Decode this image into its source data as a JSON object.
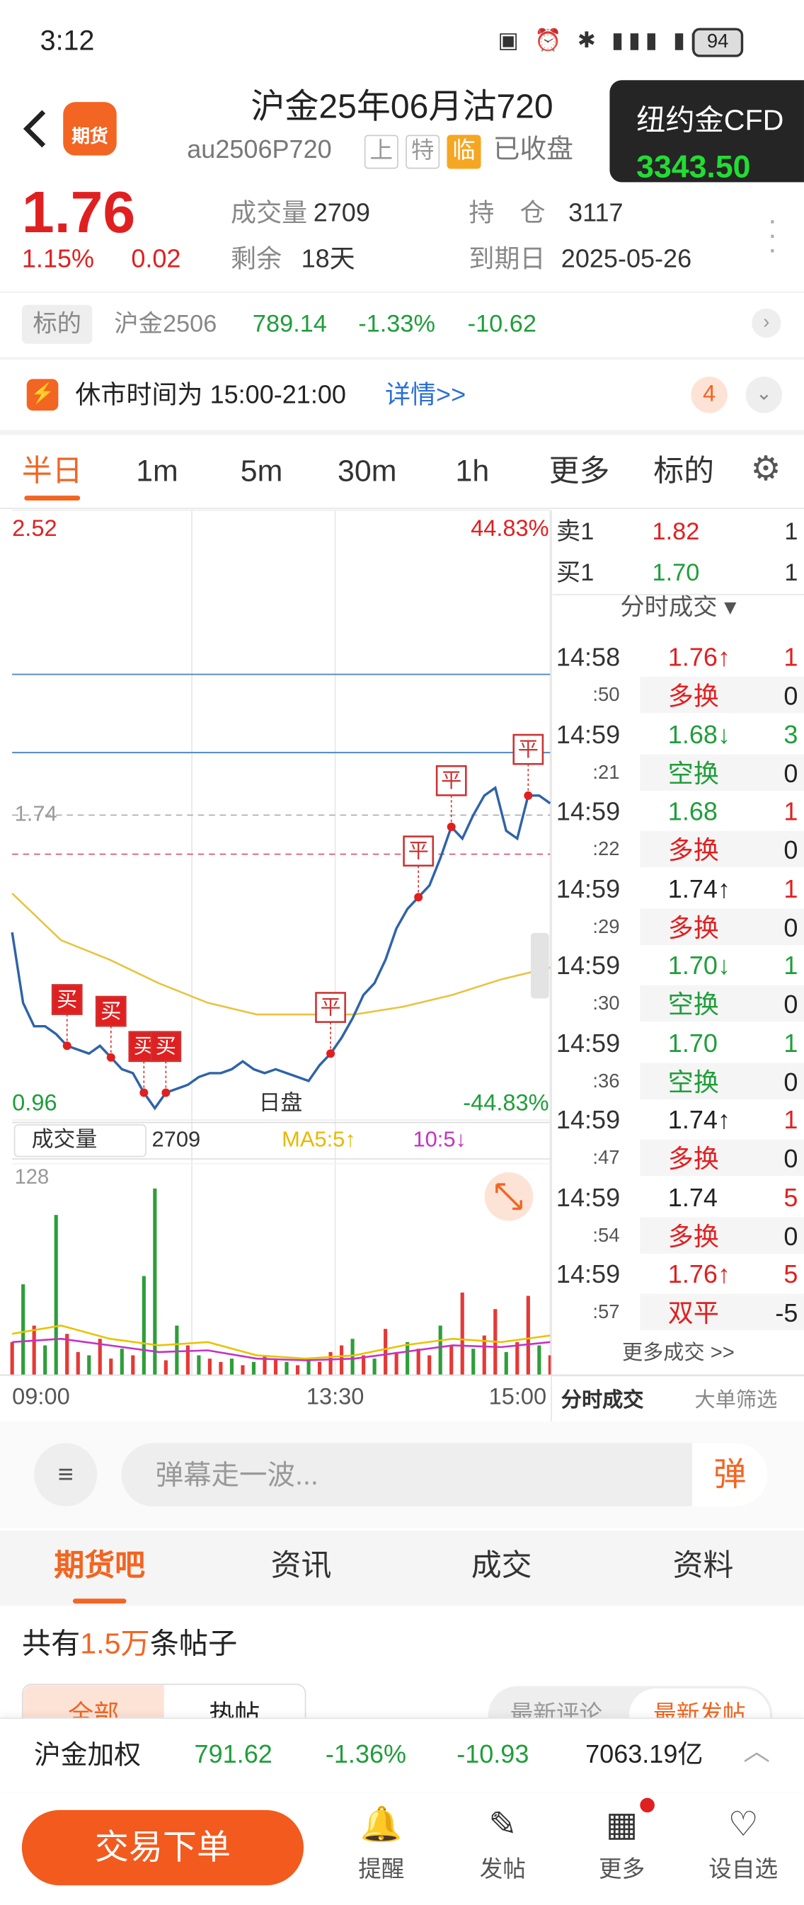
{
  "status_bar": {
    "time": "3:12",
    "battery": "94"
  },
  "header": {
    "title": "沪金25年06月沽720",
    "code": "au2506P720",
    "badges": [
      "上",
      "特",
      "临"
    ],
    "status": "已收盘",
    "logo": "期货"
  },
  "overlay": {
    "name": "纽约金CFD",
    "price": "3343.50"
  },
  "quote": {
    "price": "1.76",
    "change_pct": "1.15%",
    "change": "0.02",
    "fields": [
      {
        "label": "成交量",
        "value": "2709"
      },
      {
        "label": "剩余",
        "value": "18天"
      },
      {
        "label": "持　仓",
        "value": "3117"
      },
      {
        "label": "到期日",
        "value": "2025-05-26"
      }
    ]
  },
  "underlying": {
    "tag": "标的",
    "name": "沪金2506",
    "price": "789.14",
    "change_pct": "-1.33%",
    "change": "-10.62"
  },
  "notice": {
    "text": "休市时间为 15:00-21:00",
    "link": "详情>>",
    "count": "4"
  },
  "tabs": [
    "半日",
    "1m",
    "5m",
    "30m",
    "1h",
    "更多",
    "标的"
  ],
  "chart": {
    "yticks": [
      2.52,
      0.96
    ],
    "pct_top": "44.83%",
    "pct_bottom": "-44.83%",
    "ref": 1.74,
    "dashed_level": 1.64,
    "levels": [
      2.1,
      1.9
    ],
    "session": "日盘",
    "price": [
      1.44,
      1.26,
      1.2,
      1.2,
      1.18,
      1.15,
      1.14,
      1.13,
      1.15,
      1.12,
      1.09,
      1.08,
      1.03,
      0.99,
      1.03,
      1.04,
      1.05,
      1.07,
      1.08,
      1.08,
      1.09,
      1.11,
      1.09,
      1.08,
      1.09,
      1.08,
      1.07,
      1.06,
      1.1,
      1.13,
      1.17,
      1.22,
      1.28,
      1.31,
      1.37,
      1.45,
      1.5,
      1.53,
      1.56,
      1.63,
      1.71,
      1.68,
      1.74,
      1.79,
      1.81,
      1.7,
      1.68,
      1.79,
      1.79,
      1.77
    ],
    "avg": [
      1.54,
      1.42,
      1.37,
      1.31,
      1.26,
      1.23,
      1.23,
      1.23,
      1.25,
      1.28,
      1.32,
      1.35
    ],
    "trades": [
      null,
      null,
      null,
      null,
      null,
      "买",
      null,
      null,
      null,
      "买",
      null,
      null,
      "买",
      null,
      "买",
      null,
      null,
      null,
      null,
      null,
      null,
      null,
      null,
      null,
      null,
      null,
      null,
      null,
      null,
      "平",
      null,
      null,
      null,
      null,
      null,
      null,
      null,
      "平",
      null,
      null,
      "平",
      null,
      null,
      null,
      null,
      null,
      null,
      "平",
      null,
      null
    ],
    "times": [
      "09:00",
      "13:30",
      "15:00"
    ]
  },
  "volume": {
    "label": "成交量",
    "value": "2709",
    "ma5": "MA5:5↑",
    "ma10": "10:5↓",
    "yticks": [
      128
    ],
    "values": [
      20,
      55,
      30,
      18,
      97,
      25,
      14,
      12,
      22,
      10,
      16,
      12,
      60,
      113,
      9,
      30,
      18,
      12,
      10,
      8,
      10,
      6,
      8,
      12,
      10,
      8,
      6,
      10,
      8,
      14,
      18,
      22,
      12,
      10,
      28,
      14,
      20,
      16,
      12,
      30,
      18,
      50,
      16,
      24,
      40,
      14,
      20,
      48,
      18,
      12
    ],
    "colors": [
      "#e53935",
      "#2e9e3a",
      "#e53935",
      "#2e9e3a",
      "#2e9e3a",
      "#e53935",
      "#e53935",
      "#2e9e3a",
      "#e53935",
      "#e53935",
      "#2e9e3a",
      "#e53935",
      "#2e9e3a",
      "#2e9e3a",
      "#e53935",
      "#2e9e3a",
      "#e53935",
      "#2e9e3a",
      "#e53935",
      "#e53935",
      "#2e9e3a",
      "#e53935",
      "#2e9e3a",
      "#e53935",
      "#e53935",
      "#2e9e3a",
      "#e53935",
      "#2e9e3a",
      "#e53935",
      "#e53935",
      "#e53935",
      "#2e9e3a",
      "#e53935",
      "#2e9e3a",
      "#e53935",
      "#e53935",
      "#2e9e3a",
      "#e53935",
      "#e53935",
      "#2e9e3a",
      "#e53935",
      "#e53935",
      "#2e9e3a",
      "#e53935",
      "#e53935",
      "#2e9e3a",
      "#e53935",
      "#e53935",
      "#2e9e3a",
      "#e53935"
    ],
    "ma5_line": [
      25,
      30,
      22,
      18,
      20,
      12,
      10,
      12,
      18,
      22,
      20,
      24
    ],
    "ma10_line": [
      20,
      22,
      18,
      14,
      15,
      10,
      9,
      10,
      14,
      18,
      17,
      20
    ]
  },
  "book": [
    {
      "label": "卖1",
      "price": "1.82",
      "qty": "1",
      "color": "#e02020"
    },
    {
      "label": "买1",
      "price": "1.70",
      "qty": "1",
      "color": "#1f9e3a"
    }
  ],
  "tape": {
    "title": "分时成交",
    "more": "更多成交 >>",
    "tabs": [
      "分时成交",
      "大单筛选"
    ],
    "rows": [
      {
        "time": "14:58",
        "sec": ":50",
        "price": "1.76↑",
        "qty": "1",
        "type": "多换",
        "delta": "0",
        "color": "#e02020",
        "qty_color": "#e02020",
        "type_color": "#e02020"
      },
      {
        "time": "14:59",
        "sec": ":21",
        "price": "1.68↓",
        "qty": "3",
        "type": "空换",
        "delta": "0",
        "color": "#1f9e3a",
        "qty_color": "#1f9e3a",
        "type_color": "#1f9e3a"
      },
      {
        "time": "14:59",
        "sec": ":22",
        "price": "1.68",
        "qty": "1",
        "type": "多换",
        "delta": "0",
        "color": "#1f9e3a",
        "qty_color": "#e02020",
        "type_color": "#e02020"
      },
      {
        "time": "14:59",
        "sec": ":29",
        "price": "1.74↑",
        "qty": "1",
        "type": "多换",
        "delta": "0",
        "color": "#222222",
        "qty_color": "#e02020",
        "type_color": "#e02020"
      },
      {
        "time": "14:59",
        "sec": ":30",
        "price": "1.70↓",
        "qty": "1",
        "type": "空换",
        "delta": "0",
        "color": "#1f9e3a",
        "qty_color": "#1f9e3a",
        "type_color": "#1f9e3a"
      },
      {
        "time": "14:59",
        "sec": ":36",
        "price": "1.70",
        "qty": "1",
        "type": "空换",
        "delta": "0",
        "color": "#1f9e3a",
        "qty_color": "#1f9e3a",
        "type_color": "#1f9e3a"
      },
      {
        "time": "14:59",
        "sec": ":47",
        "price": "1.74↑",
        "qty": "1",
        "type": "多换",
        "delta": "0",
        "color": "#222222",
        "qty_color": "#e02020",
        "type_color": "#e02020"
      },
      {
        "time": "14:59",
        "sec": ":54",
        "price": "1.74",
        "qty": "5",
        "type": "多换",
        "delta": "0",
        "color": "#222222",
        "qty_color": "#e02020",
        "type_color": "#e02020"
      },
      {
        "time": "14:59",
        "sec": ":57",
        "price": "1.76↑",
        "qty": "5",
        "type": "双平",
        "delta": "-5",
        "color": "#e02020",
        "qty_color": "#e02020",
        "type_color": "#e02020"
      }
    ]
  },
  "comment": {
    "placeholder": "弹幕走一波...",
    "button": "弹"
  },
  "forum": {
    "tabs": [
      "期货吧",
      "资讯",
      "成交",
      "资料"
    ],
    "count_prefix": "共有",
    "count": "1.5万",
    "count_suffix": "条帖子",
    "filters": [
      "全部",
      "热帖",
      "最新评论",
      "最新发帖"
    ]
  },
  "ticker": {
    "name": "沪金加权",
    "price": "791.62",
    "change_pct": "-1.36%",
    "change": "-10.93",
    "amount": "7063.19亿"
  },
  "bottom_bar": {
    "primary": "交易下单",
    "items": [
      "提醒",
      "发帖",
      "更多",
      "设自选"
    ]
  }
}
